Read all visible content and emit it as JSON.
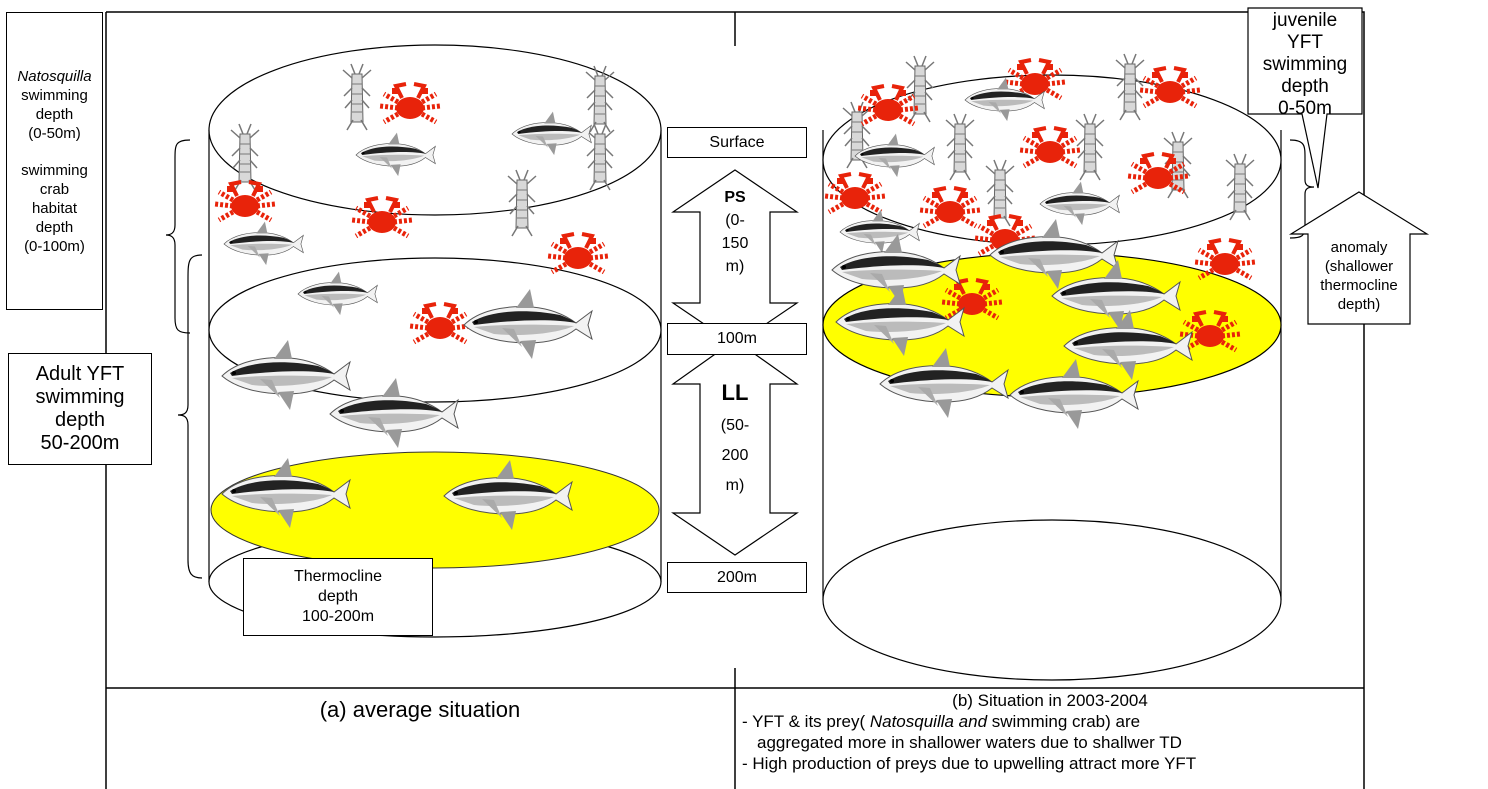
{
  "left_labels": {
    "natosquilla_name": "Natosquilla",
    "natosquilla_rest": [
      "swimming",
      "depth",
      "(0-50m)"
    ],
    "crab_lines": [
      "swimming",
      "crab",
      "habitat",
      "depth",
      "(0-100m)"
    ],
    "adult_yft_lines": [
      "Adult YFT",
      "swimming",
      "depth",
      "50-200m"
    ]
  },
  "thermocline_box": {
    "lines": [
      "Thermocline",
      "depth",
      "100-200m"
    ]
  },
  "center_scale": {
    "surface": "Surface",
    "depth_100": "100m",
    "depth_200": "200m",
    "ps_label": "PS",
    "ps_range_lines": [
      "(0-",
      "150",
      "m)"
    ],
    "ll_label": "LL",
    "ll_range_lines": [
      "(50-",
      "200",
      "m)"
    ]
  },
  "right_labels": {
    "juvenile_lines": [
      "juvenile",
      "YFT",
      "swimming",
      "depth",
      "0-50m"
    ],
    "anomaly_lines": [
      "anomaly",
      "(shallower",
      "thermocline",
      "depth)"
    ]
  },
  "captions": {
    "left": "(a) average situation",
    "right_title": "(b) Situation in 2003-2004",
    "right_notes": {
      "n1_pre": "- YFT & its prey( ",
      "n1_italic": "Natosquilla and",
      "n1_post": " swimming crab) are",
      "n2": "aggregated more in shallower waters due to shallwer TD",
      "n3": "- High production of preys due to upwelling attract more YFT"
    }
  },
  "colors": {
    "thermocline_fill": "#ffff00",
    "crab": "#e8230a",
    "tuna_dark": "#222222",
    "tuna_light": "#c8c8c8"
  },
  "icons": [
    "tuna-icon",
    "crab-icon",
    "mantis-shrimp-icon"
  ]
}
